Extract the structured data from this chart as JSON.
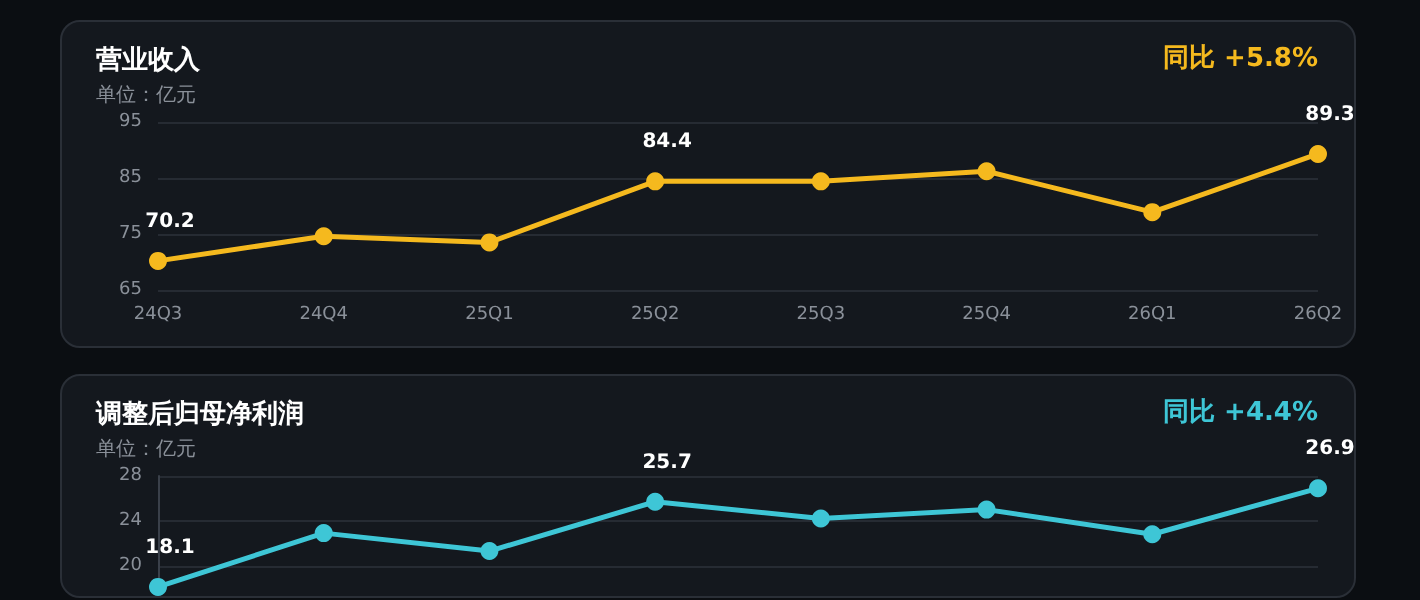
{
  "chart_data": [
    {
      "type": "line",
      "title": "营业收入",
      "subtitle": "单位：亿元",
      "annotations": [
        "同比 +5.8%"
      ],
      "categories": [
        "24Q3",
        "24Q4",
        "25Q1",
        "25Q2",
        "25Q3",
        "25Q4",
        "26Q1",
        "26Q2"
      ],
      "series": [
        {
          "color": "#f5b91e",
          "values": [
            70.2,
            74.6,
            73.5,
            84.4,
            84.4,
            86.2,
            78.9,
            89.3
          ],
          "value_labels": [
            "70.2",
            null,
            null,
            "84.4",
            null,
            null,
            null,
            "89.3"
          ]
        }
      ],
      "ylim": [
        65,
        95
      ],
      "yticks": [
        65,
        75,
        85,
        95
      ],
      "grid": "y",
      "marker": "circle",
      "line_style": "solid"
    },
    {
      "type": "line",
      "title": "调整后归母净利润",
      "subtitle": "单位：亿元",
      "annotations": [
        "同比 +4.4%"
      ],
      "categories": [
        null,
        null,
        null,
        null,
        null,
        null,
        null,
        null
      ],
      "series": [
        {
          "color": "#3ec6d6",
          "values": [
            18.1,
            22.9,
            21.3,
            25.7,
            24.2,
            25.0,
            22.8,
            26.9
          ],
          "value_labels": [
            "18.1",
            null,
            null,
            "25.7",
            null,
            null,
            null,
            "26.9"
          ]
        }
      ],
      "ylim": [
        18,
        28
      ],
      "yticks": [
        20,
        24,
        28
      ],
      "grid": "y",
      "marker": "circle",
      "line_style": "solid",
      "tick_labels": "y"
    }
  ]
}
